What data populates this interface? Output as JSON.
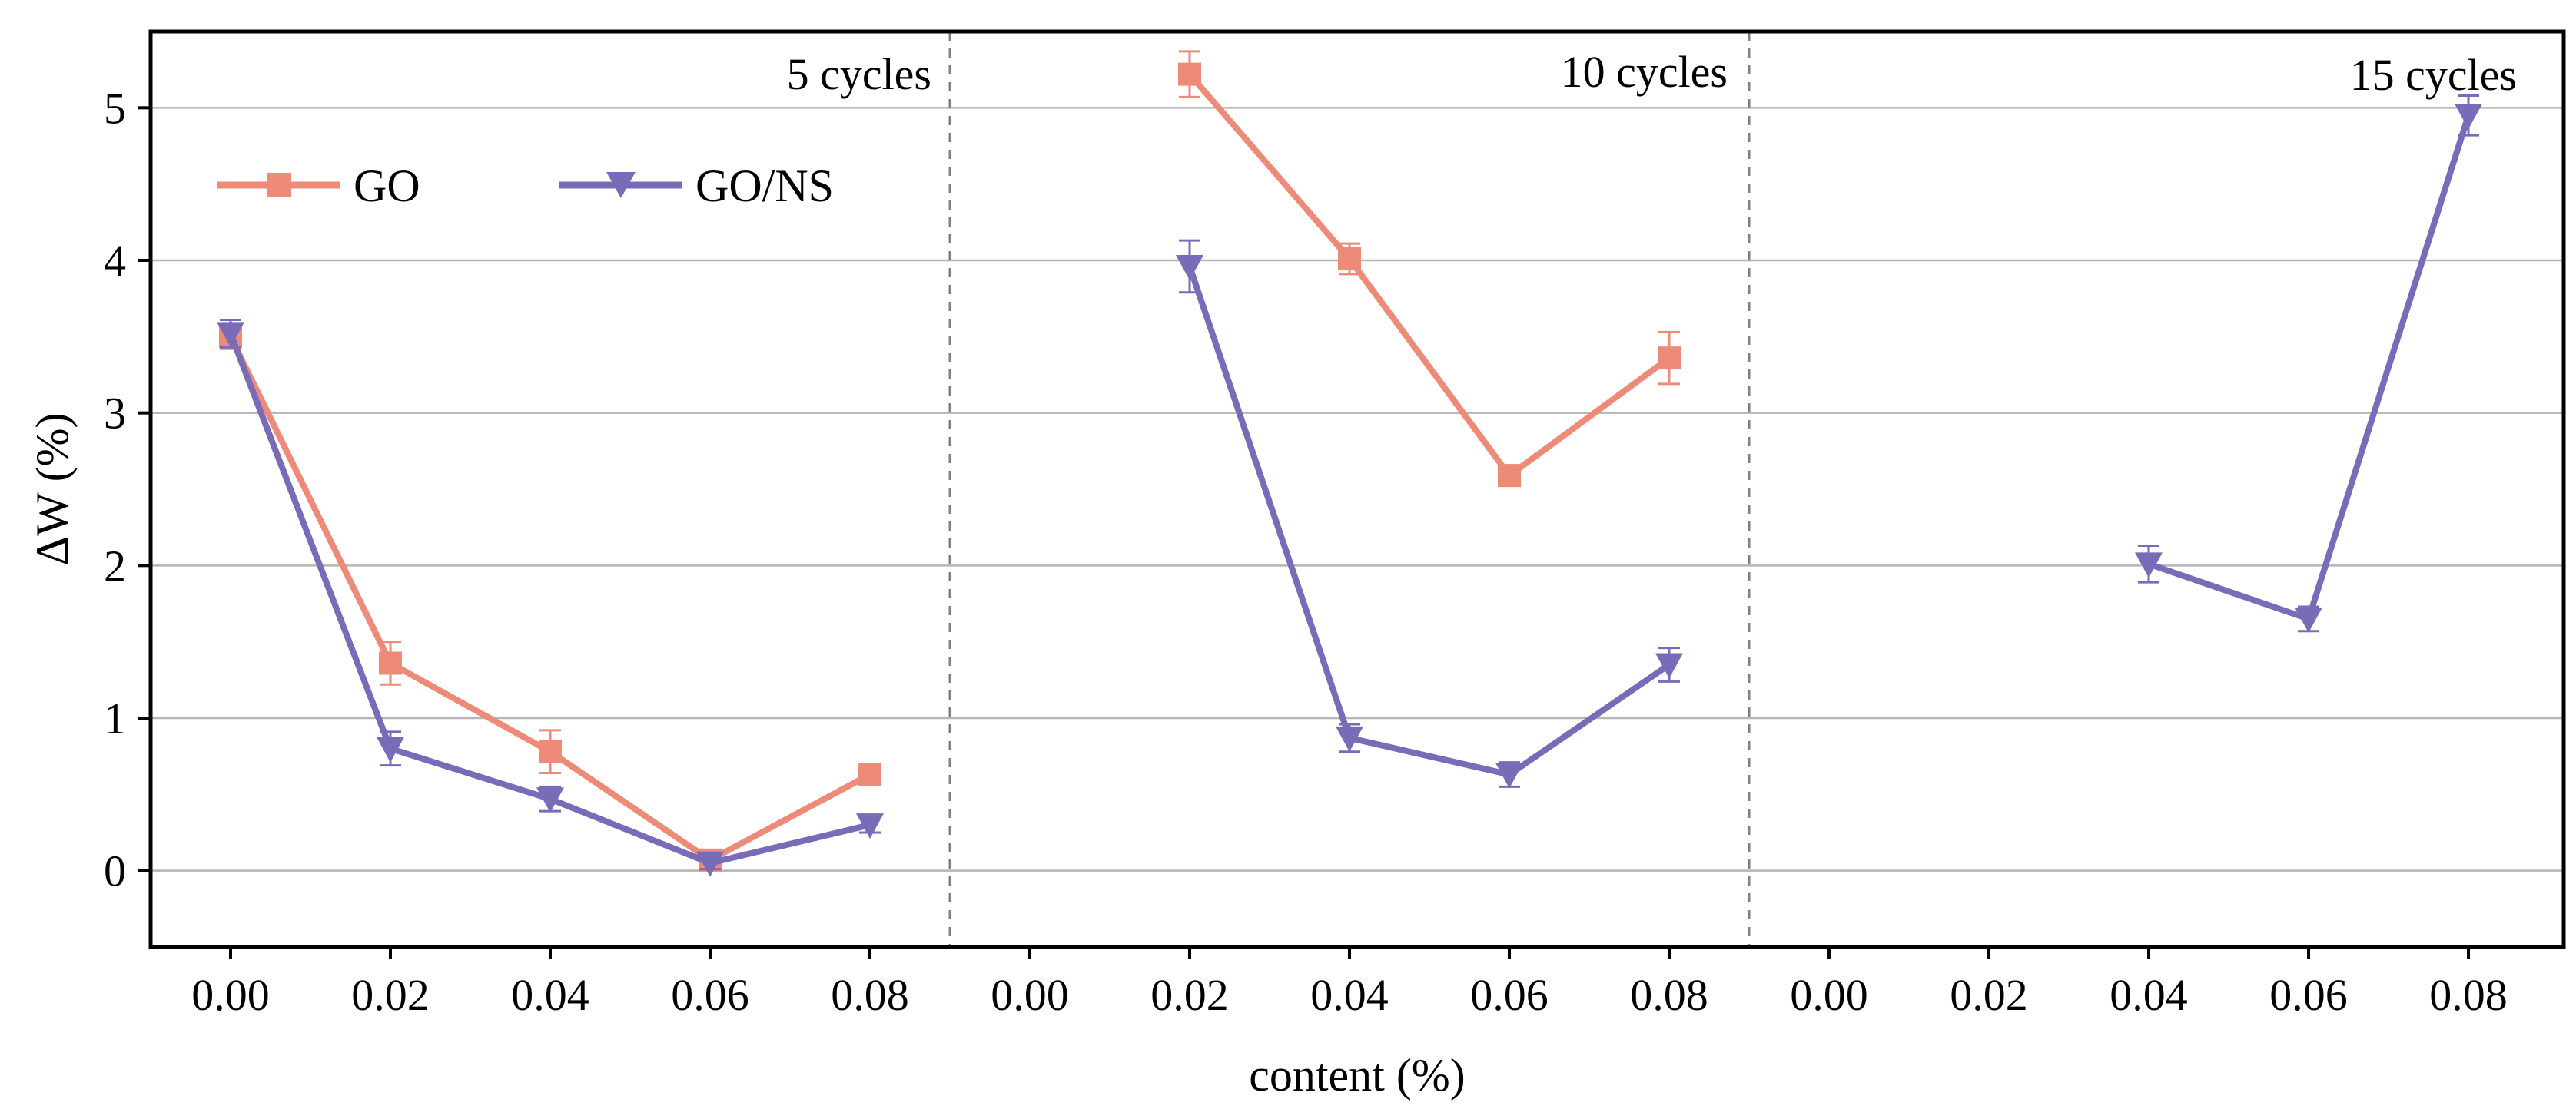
{
  "chart_data": {
    "type": "line",
    "title": "",
    "xlabel": "content (%)",
    "ylabel": "ΔW (%)",
    "ylim": [
      -0.5,
      5.5
    ],
    "yticks": [
      "0",
      "1",
      "2",
      "3",
      "4",
      "5"
    ],
    "ytick_values": [
      0,
      1,
      2,
      3,
      4,
      5
    ],
    "x_tick_labels": [
      "0.00",
      "0.02",
      "0.04",
      "0.06",
      "0.08"
    ],
    "grid": "horizontal",
    "legend_position": "top-left",
    "colors": {
      "GO": "#ee8a78",
      "GO/NS": "#7a6bb8"
    },
    "markers": {
      "GO": "square",
      "GO/NS": "triangle-down"
    },
    "panels": [
      {
        "label": "5 cycles",
        "series": [
          {
            "name": "GO",
            "x": [
              0.0,
              0.02,
              0.04,
              0.06,
              0.08
            ],
            "values": [
              3.5,
              1.36,
              0.78,
              0.07,
              0.63
            ],
            "errors": [
              0.08,
              0.14,
              0.14,
              0.05,
              0.04
            ]
          },
          {
            "name": "GO/NS",
            "x": [
              0.0,
              0.02,
              0.04,
              0.06,
              0.08
            ],
            "values": [
              3.52,
              0.8,
              0.47,
              0.05,
              0.3
            ],
            "errors": [
              0.09,
              0.11,
              0.08,
              0.04,
              0.05
            ]
          }
        ]
      },
      {
        "label": "10 cycles",
        "series": [
          {
            "name": "GO",
            "x": [
              0.02,
              0.04,
              0.06,
              0.08
            ],
            "values": [
              5.22,
              4.01,
              2.59,
              3.36
            ],
            "errors": [
              0.15,
              0.1,
              0.06,
              0.17
            ]
          },
          {
            "name": "GO/NS",
            "x": [
              0.02,
              0.04,
              0.06,
              0.08
            ],
            "values": [
              3.96,
              0.87,
              0.63,
              1.35
            ],
            "errors": [
              0.17,
              0.09,
              0.08,
              0.11
            ]
          }
        ]
      },
      {
        "label": "15 cycles",
        "series": [
          {
            "name": "GO/NS",
            "x": [
              0.04,
              0.06,
              0.08
            ],
            "values": [
              2.01,
              1.65,
              4.95
            ],
            "errors": [
              0.12,
              0.08,
              0.13
            ]
          }
        ]
      }
    ]
  }
}
